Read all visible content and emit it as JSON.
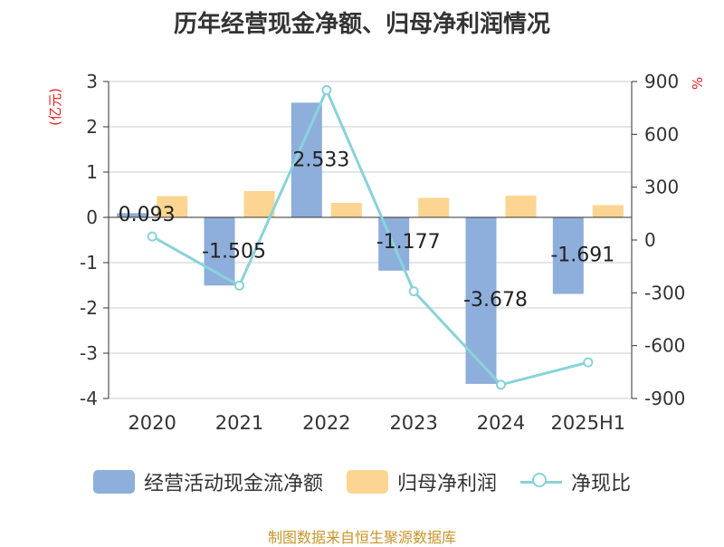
{
  "chart_data": {
    "type": "bar",
    "title": "历年经营现金净额、归母净利润情况",
    "categories": [
      "2020",
      "2021",
      "2022",
      "2023",
      "2024",
      "2025H1"
    ],
    "y_left_unit": "(亿元)",
    "y_right_unit": "%",
    "y_left_ticks": [
      "3",
      "2",
      "1",
      "0",
      "-1",
      "-2",
      "-3",
      "-4"
    ],
    "y_right_ticks": [
      "900",
      "600",
      "300",
      "0",
      "-300",
      "-600",
      "-900"
    ],
    "ylim_left": [
      -4,
      3
    ],
    "ylim_right": [
      -900,
      900
    ],
    "grid": true,
    "legend_position": "bottom",
    "series": [
      {
        "name": "经营活动现金流净额",
        "kind": "bar",
        "axis": "left",
        "color": "#8eaedb",
        "values": [
          0.093,
          -1.505,
          2.533,
          -1.177,
          -3.678,
          -1.691
        ],
        "labels": [
          "0.093",
          "-1.505",
          "2.533",
          "-1.177",
          "-3.678",
          "-1.691"
        ]
      },
      {
        "name": "归母净利润",
        "kind": "bar",
        "axis": "left",
        "color": "#fdd592",
        "values": [
          0.47,
          0.58,
          0.32,
          0.43,
          0.48,
          0.27
        ]
      },
      {
        "name": "净现比",
        "kind": "line",
        "axis": "right",
        "color": "#89d3d9",
        "values": [
          20,
          -259,
          851,
          -291,
          -822,
          -695
        ]
      }
    ]
  },
  "source_text": "制图数据来自恒生聚源数据库",
  "source_color": "#c8962a"
}
